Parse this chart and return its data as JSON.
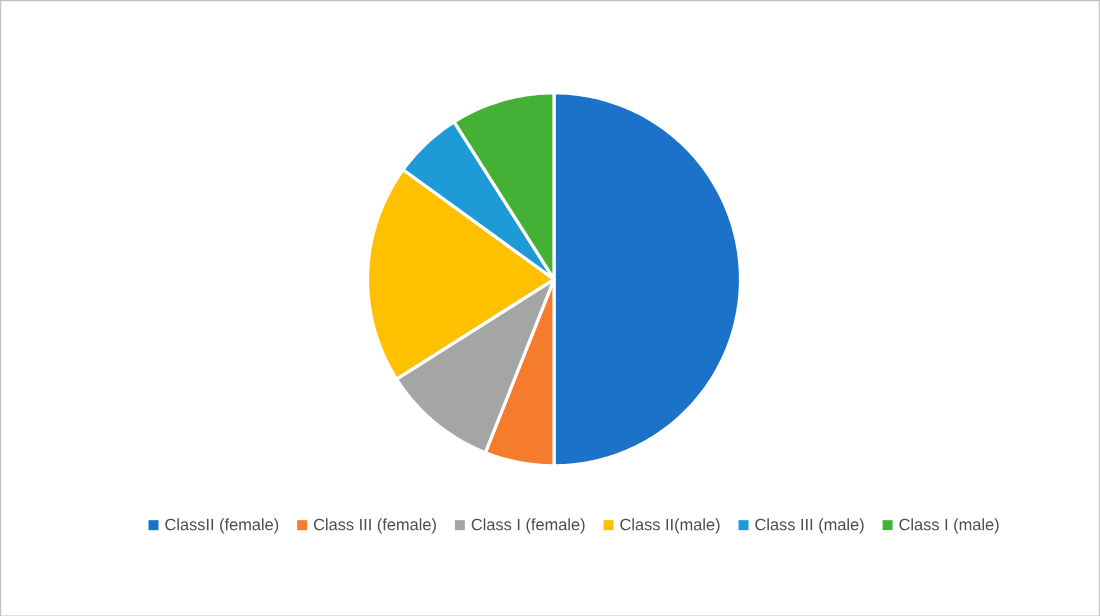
{
  "chart_data": {
    "type": "pie",
    "categories": [
      "ClassII (female)",
      "Class III (female)",
      "Class I (female)",
      "Class II(male)",
      "Class III (male)",
      "Class I (male)"
    ],
    "values": [
      50,
      6,
      10,
      19,
      6,
      9
    ],
    "colors": [
      "#1b72c8",
      "#f47c2c",
      "#a5a5a5",
      "#ffc000",
      "#1e9ad6",
      "#44b035"
    ],
    "legend": "bottom"
  }
}
